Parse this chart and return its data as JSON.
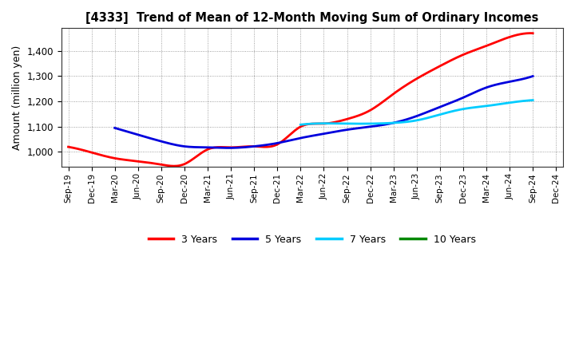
{
  "title": "[4333]  Trend of Mean of 12-Month Moving Sum of Ordinary Incomes",
  "ylabel": "Amount (million yen)",
  "ylim": [
    940,
    1490
  ],
  "yticks": [
    1000,
    1100,
    1200,
    1300,
    1400
  ],
  "background_color": "#ffffff",
  "grid_color": "#aaaaaa",
  "x_labels": [
    "Sep-19",
    "Dec-19",
    "Mar-20",
    "Jun-20",
    "Sep-20",
    "Dec-20",
    "Mar-21",
    "Jun-21",
    "Sep-21",
    "Dec-21",
    "Mar-22",
    "Jun-22",
    "Sep-22",
    "Dec-22",
    "Mar-23",
    "Jun-23",
    "Sep-23",
    "Dec-23",
    "Mar-24",
    "Jun-24",
    "Sep-24",
    "Dec-24"
  ],
  "series": {
    "3 Years": {
      "color": "#ff0000",
      "data": [
        1020,
        998,
        975,
        963,
        950,
        952,
        1010,
        1018,
        1022,
        1030,
        1100,
        1112,
        1130,
        1165,
        1230,
        1290,
        1340,
        1385,
        1420,
        1455,
        1470,
        null
      ]
    },
    "5 Years": {
      "color": "#0000dd",
      "data": [
        null,
        null,
        1095,
        1068,
        1042,
        1022,
        1018,
        1016,
        1022,
        1035,
        1055,
        1072,
        1088,
        1100,
        1115,
        1142,
        1178,
        1215,
        1255,
        1278,
        1300,
        null
      ]
    },
    "7 Years": {
      "color": "#00ccff",
      "data": [
        null,
        null,
        null,
        null,
        null,
        null,
        null,
        null,
        null,
        null,
        1108,
        1113,
        1112,
        1112,
        1115,
        1125,
        1148,
        1170,
        1182,
        1195,
        1205,
        null
      ]
    },
    "10 Years": {
      "color": "#008800",
      "data": [
        null,
        null,
        null,
        null,
        null,
        null,
        null,
        null,
        null,
        null,
        null,
        null,
        null,
        null,
        null,
        null,
        null,
        null,
        null,
        null,
        null,
        null
      ]
    }
  },
  "legend_entries": [
    "3 Years",
    "5 Years",
    "7 Years",
    "10 Years"
  ],
  "legend_colors": [
    "#ff0000",
    "#0000dd",
    "#00ccff",
    "#008800"
  ]
}
